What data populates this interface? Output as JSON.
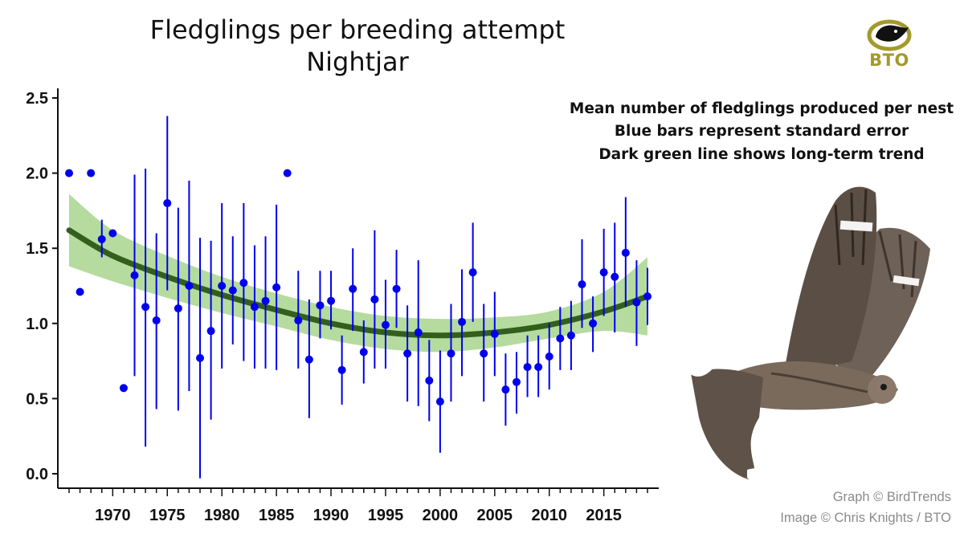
{
  "header": {
    "title_line1": "Fledglings per breeding attempt",
    "title_line2": "Nightjar"
  },
  "notes": [
    "Mean number of fledglings produced per nest",
    "Blue bars represent standard error",
    "Dark green line shows long-term trend"
  ],
  "credits": {
    "graph": "Graph © BirdTrends",
    "image": "Image © Chris Knights / BTO"
  },
  "logo": {
    "text": "BTO",
    "icon": "bird-eye-icon"
  },
  "photo": {
    "icon": "nightjar-bird-icon"
  },
  "colors": {
    "points": "#0000ee",
    "trend": "#335f1c",
    "ci_band": "#a8d58e",
    "logo": "#a49a2c"
  },
  "chart_data": {
    "type": "scatter",
    "title": "Fledglings per breeding attempt",
    "subtitle": "Nightjar",
    "xlabel": "",
    "ylabel": "",
    "xlim": [
      1965.5,
      2019.5
    ],
    "ylim": [
      -0.1,
      2.6
    ],
    "x_ticks": [
      1970,
      1975,
      1980,
      1985,
      1990,
      1995,
      2000,
      2005,
      2010,
      2015
    ],
    "y_ticks": [
      "0.0",
      "0.5",
      "1.0",
      "1.5",
      "2.0",
      "2.5"
    ],
    "grid": false,
    "series": [
      {
        "points": [
          {
            "x": 1966,
            "y": 2.0
          },
          {
            "x": 1967,
            "y": 1.21
          },
          {
            "x": 1968,
            "y": 2.0
          },
          {
            "x": 1969,
            "y": 1.56,
            "lo": 1.44,
            "hi": 1.69
          },
          {
            "x": 1970,
            "y": 1.6
          },
          {
            "x": 1971,
            "y": 0.57
          },
          {
            "x": 1972,
            "y": 1.32,
            "lo": 0.65,
            "hi": 1.99
          },
          {
            "x": 1973,
            "y": 1.11,
            "lo": 0.18,
            "hi": 2.03
          },
          {
            "x": 1974,
            "y": 1.02,
            "lo": 0.43,
            "hi": 1.6
          },
          {
            "x": 1975,
            "y": 1.8,
            "lo": 1.22,
            "hi": 2.38
          },
          {
            "x": 1976,
            "y": 1.1,
            "lo": 0.42,
            "hi": 1.77
          },
          {
            "x": 1977,
            "y": 1.25,
            "lo": 0.55,
            "hi": 1.95
          },
          {
            "x": 1978,
            "y": 0.77,
            "lo": -0.03,
            "hi": 1.57
          },
          {
            "x": 1979,
            "y": 0.95,
            "lo": 0.36,
            "hi": 1.55
          },
          {
            "x": 1980,
            "y": 1.25,
            "lo": 0.7,
            "hi": 1.8
          },
          {
            "x": 1981,
            "y": 1.22,
            "lo": 0.86,
            "hi": 1.58
          },
          {
            "x": 1982,
            "y": 1.27,
            "lo": 0.75,
            "hi": 1.8
          },
          {
            "x": 1983,
            "y": 1.11,
            "lo": 0.7,
            "hi": 1.52
          },
          {
            "x": 1984,
            "y": 1.15,
            "lo": 0.7,
            "hi": 1.58
          },
          {
            "x": 1985,
            "y": 1.24,
            "lo": 0.69,
            "hi": 1.79
          },
          {
            "x": 1986,
            "y": 2.0
          },
          {
            "x": 1987,
            "y": 1.02,
            "lo": 0.7,
            "hi": 1.35
          },
          {
            "x": 1988,
            "y": 0.76,
            "lo": 0.37,
            "hi": 1.16
          },
          {
            "x": 1989,
            "y": 1.12,
            "lo": 0.9,
            "hi": 1.35
          },
          {
            "x": 1990,
            "y": 1.15,
            "lo": 0.96,
            "hi": 1.35
          },
          {
            "x": 1991,
            "y": 0.69,
            "lo": 0.46,
            "hi": 0.92
          },
          {
            "x": 1992,
            "y": 1.23,
            "lo": 0.95,
            "hi": 1.5
          },
          {
            "x": 1993,
            "y": 0.81,
            "lo": 0.6,
            "hi": 1.02
          },
          {
            "x": 1994,
            "y": 1.16,
            "lo": 0.7,
            "hi": 1.62
          },
          {
            "x": 1995,
            "y": 0.99,
            "lo": 0.7,
            "hi": 1.29
          },
          {
            "x": 1996,
            "y": 1.23,
            "lo": 0.97,
            "hi": 1.49
          },
          {
            "x": 1997,
            "y": 0.8,
            "lo": 0.48,
            "hi": 1.12
          },
          {
            "x": 1998,
            "y": 0.94,
            "lo": 0.45,
            "hi": 1.42
          },
          {
            "x": 1999,
            "y": 0.62,
            "lo": 0.35,
            "hi": 0.89
          },
          {
            "x": 2000,
            "y": 0.48,
            "lo": 0.14,
            "hi": 0.82
          },
          {
            "x": 2001,
            "y": 0.8,
            "lo": 0.48,
            "hi": 1.13
          },
          {
            "x": 2002,
            "y": 1.01,
            "lo": 0.65,
            "hi": 1.36
          },
          {
            "x": 2003,
            "y": 1.34,
            "lo": 1.01,
            "hi": 1.67
          },
          {
            "x": 2004,
            "y": 0.8,
            "lo": 0.48,
            "hi": 1.13
          },
          {
            "x": 2005,
            "y": 0.93,
            "lo": 0.65,
            "hi": 1.21
          },
          {
            "x": 2006,
            "y": 0.56,
            "lo": 0.32,
            "hi": 0.8
          },
          {
            "x": 2007,
            "y": 0.61,
            "lo": 0.4,
            "hi": 0.81
          },
          {
            "x": 2008,
            "y": 0.71,
            "lo": 0.51,
            "hi": 0.92
          },
          {
            "x": 2009,
            "y": 0.71,
            "lo": 0.51,
            "hi": 0.92
          },
          {
            "x": 2010,
            "y": 0.78,
            "lo": 0.56,
            "hi": 1.0
          },
          {
            "x": 2011,
            "y": 0.9,
            "lo": 0.69,
            "hi": 1.11
          },
          {
            "x": 2012,
            "y": 0.92,
            "lo": 0.69,
            "hi": 1.15
          },
          {
            "x": 2013,
            "y": 1.26,
            "lo": 0.97,
            "hi": 1.56
          },
          {
            "x": 2014,
            "y": 1.0,
            "lo": 0.81,
            "hi": 1.18
          },
          {
            "x": 2015,
            "y": 1.34,
            "lo": 1.05,
            "hi": 1.63
          },
          {
            "x": 2016,
            "y": 1.31,
            "lo": 0.94,
            "hi": 1.67
          },
          {
            "x": 2017,
            "y": 1.47,
            "lo": 1.11,
            "hi": 1.84
          },
          {
            "x": 2018,
            "y": 1.14,
            "lo": 0.85,
            "hi": 1.42
          },
          {
            "x": 2019,
            "y": 1.18,
            "lo": 0.99,
            "hi": 1.37
          }
        ]
      }
    ],
    "trend": {
      "x": [
        1966,
        1970,
        1975,
        1980,
        1985,
        1990,
        1995,
        2000,
        2005,
        2010,
        2015,
        2019
      ],
      "y": [
        1.62,
        1.45,
        1.31,
        1.19,
        1.09,
        1.0,
        0.94,
        0.92,
        0.94,
        0.99,
        1.08,
        1.18
      ],
      "lo": [
        1.38,
        1.28,
        1.17,
        1.07,
        0.98,
        0.89,
        0.83,
        0.81,
        0.84,
        0.9,
        0.95,
        0.92
      ],
      "hi": [
        1.86,
        1.62,
        1.45,
        1.31,
        1.2,
        1.11,
        1.05,
        1.03,
        1.04,
        1.08,
        1.21,
        1.44
      ]
    }
  }
}
